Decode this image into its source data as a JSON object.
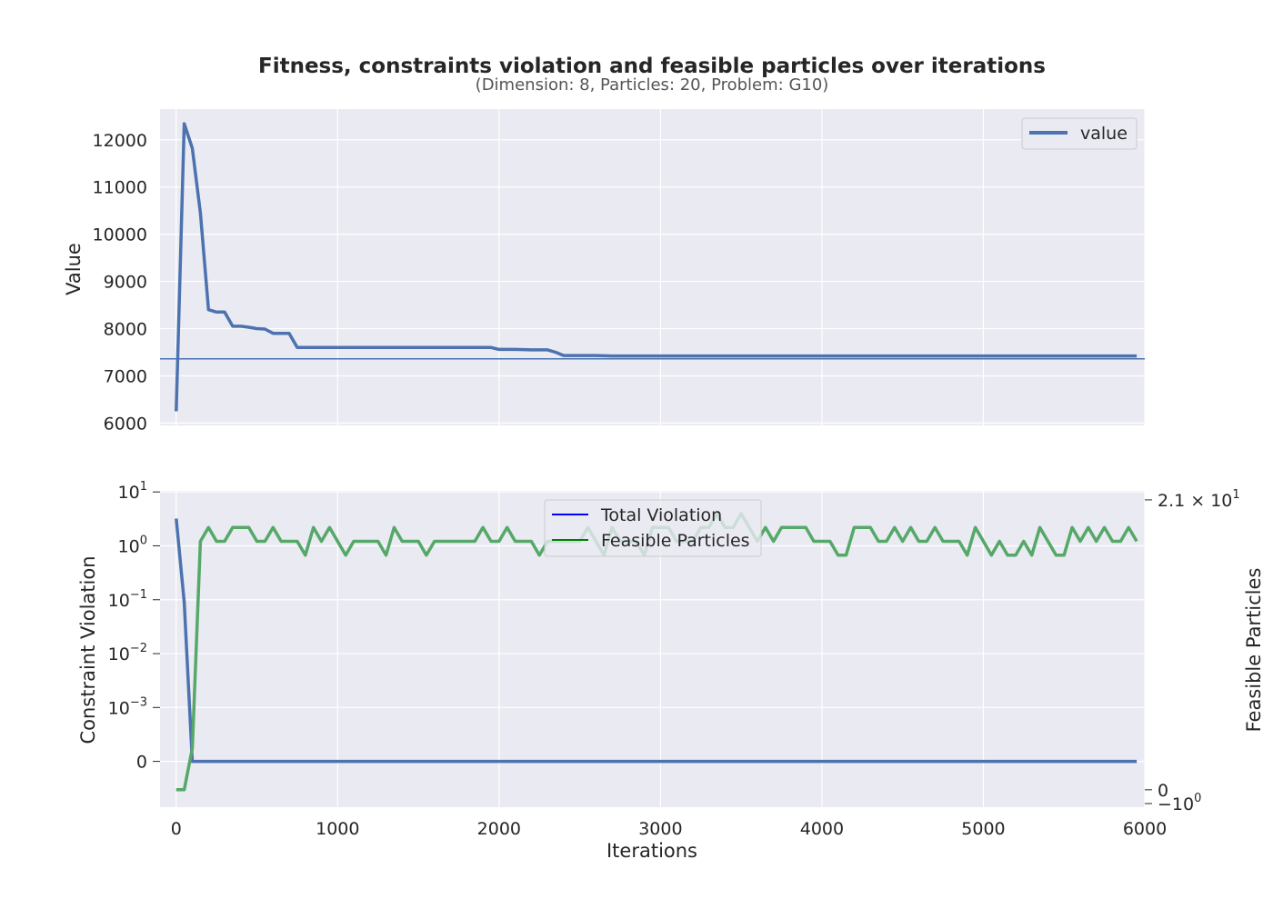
{
  "title": "Fitness, constraints violation and feasible particles over iterations",
  "subtitle": "(Dimension: 8, Particles: 20, Problem: G10)",
  "colors": {
    "panel_bg": "#eaeaf2",
    "grid": "#ffffff",
    "fitness_line": "#4c72b0",
    "violation_line": "#4c72b0",
    "feasible_line": "#55a868",
    "legend_violation": "#0000ff",
    "legend_feasible": "#008000"
  },
  "chart_data": [
    {
      "type": "line",
      "panel": "top",
      "ylabel": "Value",
      "xlim": [
        -100,
        6000
      ],
      "ylim": [
        5950,
        12650
      ],
      "x_ticks": [
        "0",
        "1000",
        "2000",
        "3000",
        "4000",
        "5000",
        "6000"
      ],
      "y_ticks": [
        "6000",
        "7000",
        "8000",
        "9000",
        "10000",
        "11000",
        "12000"
      ],
      "grid": true,
      "legend": {
        "position": "top-right",
        "entries": [
          "value"
        ]
      },
      "reference_line_y": 7360,
      "series": [
        {
          "name": "value",
          "x": [
            0,
            50,
            100,
            150,
            200,
            250,
            300,
            350,
            400,
            450,
            500,
            550,
            600,
            650,
            700,
            750,
            800,
            1000,
            1500,
            1950,
            2000,
            2100,
            2200,
            2300,
            2350,
            2400,
            2500,
            2600,
            2700,
            3000,
            4000,
            5000,
            5950
          ],
          "y": [
            6250,
            12340,
            11820,
            10450,
            8400,
            8350,
            8350,
            8050,
            8050,
            8030,
            8000,
            7990,
            7900,
            7900,
            7900,
            7600,
            7600,
            7600,
            7600,
            7600,
            7560,
            7560,
            7550,
            7550,
            7500,
            7430,
            7430,
            7430,
            7420,
            7420,
            7420,
            7420,
            7420
          ]
        }
      ]
    },
    {
      "type": "line",
      "panel": "bottom",
      "ylabel": "Constraint Violation",
      "y2label": "Feasible Particles",
      "xlabel": "Iterations",
      "xlim": [
        -100,
        6000
      ],
      "y_scale": "symlog",
      "ylim": [
        -2,
        10
      ],
      "y_ticks": [
        "10^1",
        "10^0",
        "10^-1",
        "10^-2",
        "10^-3",
        "0"
      ],
      "y2_ticks": [
        "2.1 × 10^1",
        "0",
        "−10^0"
      ],
      "y2lim": [
        -1,
        21
      ],
      "grid": true,
      "legend": {
        "position": "top-center",
        "entries": [
          "Total Violation",
          "Feasible Particles"
        ]
      },
      "series": [
        {
          "name": "Total Violation",
          "axis": "left",
          "x": [
            0,
            50,
            100,
            150,
            200,
            1000,
            2000,
            3000,
            4000,
            5000,
            5950
          ],
          "y": [
            3.2,
            0.09,
            0,
            0,
            0,
            0,
            0,
            0,
            0,
            0,
            0
          ]
        },
        {
          "name": "Feasible Particles",
          "axis": "right",
          "x": [
            0,
            50,
            100,
            150,
            200,
            250,
            300,
            350,
            400,
            450,
            500,
            550,
            600,
            650,
            700,
            750,
            800,
            850,
            900,
            950,
            1000,
            1050,
            1100,
            1150,
            1200,
            1250,
            1300,
            1350,
            1400,
            1450,
            1500,
            1550,
            1600,
            1650,
            1700,
            1750,
            1800,
            1850,
            1900,
            1950,
            2000,
            2050,
            2100,
            2150,
            2200,
            2250,
            2300,
            2350,
            2400,
            2450,
            2500,
            2550,
            2600,
            2650,
            2700,
            2750,
            2800,
            2850,
            2900,
            2950,
            3000,
            3050,
            3100,
            3150,
            3200,
            3250,
            3300,
            3350,
            3400,
            3450,
            3500,
            3550,
            3600,
            3650,
            3700,
            3750,
            3800,
            3850,
            3900,
            3950,
            4000,
            4050,
            4100,
            4150,
            4200,
            4250,
            4300,
            4350,
            4400,
            4450,
            4500,
            4550,
            4600,
            4650,
            4700,
            4750,
            4800,
            4850,
            4900,
            4950,
            5000,
            5050,
            5100,
            5150,
            5200,
            5250,
            5300,
            5350,
            5400,
            5450,
            5500,
            5550,
            5600,
            5650,
            5700,
            5750,
            5800,
            5850,
            5900,
            5950
          ],
          "y": [
            0,
            0,
            3,
            18,
            19,
            18,
            18,
            19,
            19,
            19,
            18,
            18,
            19,
            18,
            18,
            18,
            17,
            19,
            18,
            19,
            18,
            17,
            18,
            18,
            18,
            18,
            17,
            19,
            18,
            18,
            18,
            17,
            18,
            18,
            18,
            18,
            18,
            18,
            19,
            18,
            18,
            19,
            18,
            18,
            18,
            17,
            18,
            18,
            18,
            18,
            18,
            19,
            18,
            17,
            19,
            18,
            18,
            18,
            17,
            19,
            19,
            19,
            18,
            18,
            18,
            19,
            19,
            20,
            19,
            19,
            20,
            19,
            18,
            19,
            18,
            19,
            19,
            19,
            19,
            18,
            18,
            18,
            17,
            17,
            19,
            19,
            19,
            18,
            18,
            19,
            18,
            19,
            18,
            18,
            19,
            18,
            18,
            18,
            17,
            19,
            18,
            17,
            18,
            17,
            17,
            18,
            17,
            19,
            18,
            17,
            17,
            19,
            18,
            19,
            18,
            19,
            18,
            18,
            19,
            18
          ]
        }
      ]
    }
  ]
}
